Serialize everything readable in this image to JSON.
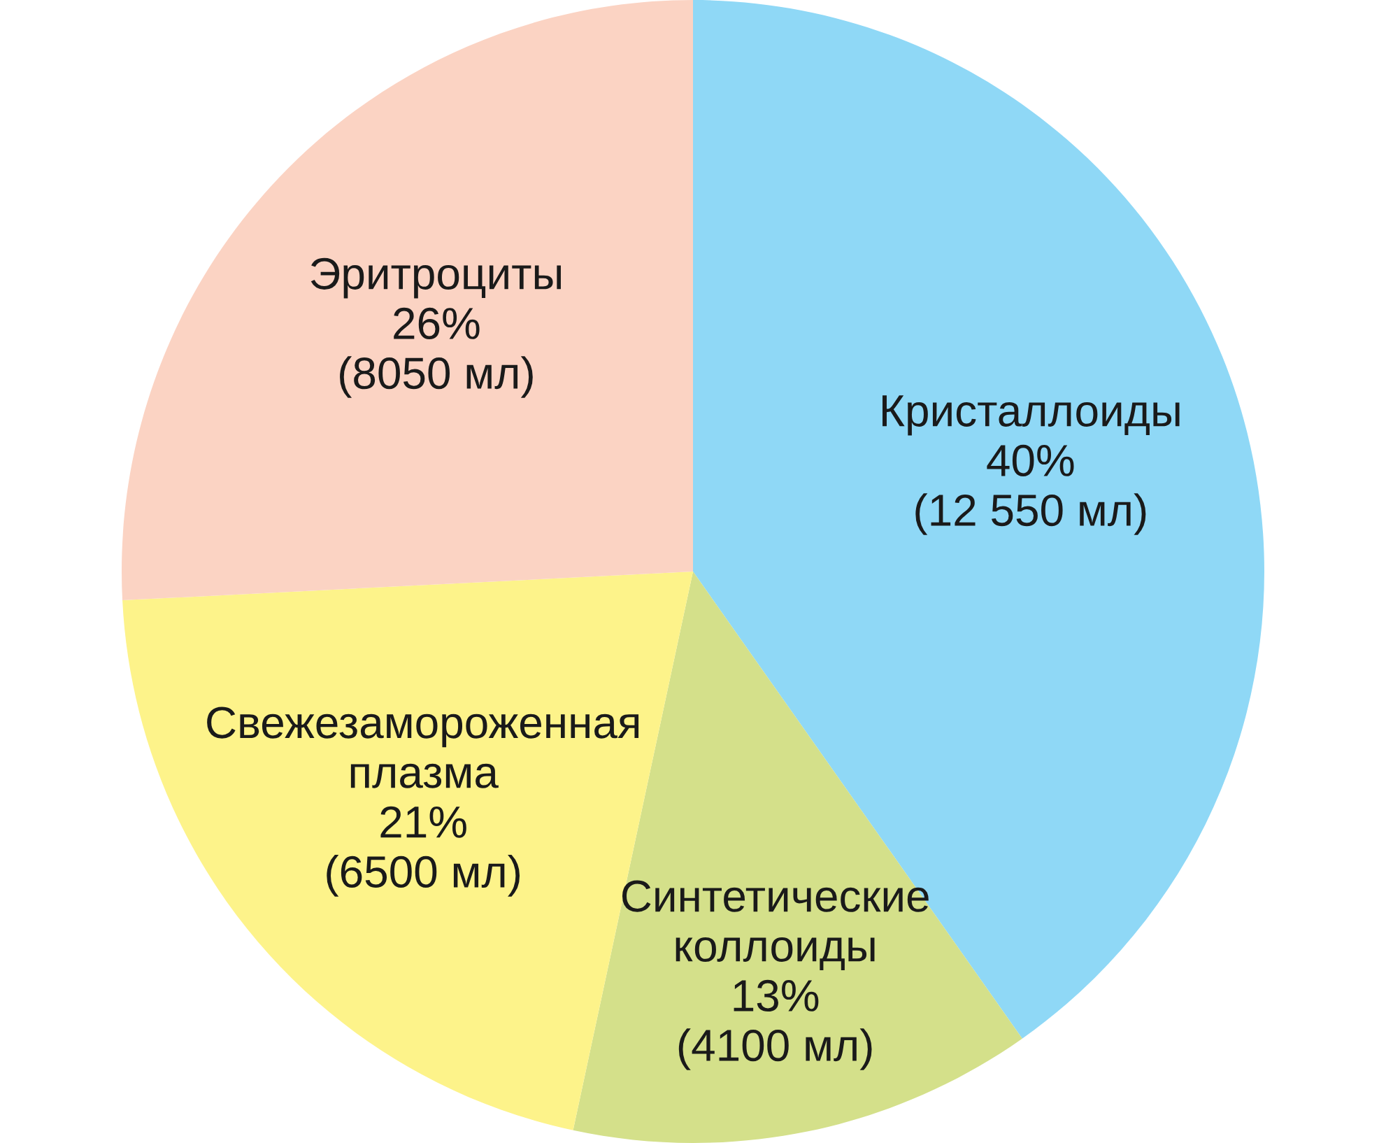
{
  "chart_data": {
    "type": "pie",
    "categories": [
      "Кристаллоиды",
      "Синтетические\nколлоиды",
      "Свежезамороженная\nплазма",
      "Эритроциты"
    ],
    "values": [
      12550,
      4100,
      6500,
      8050
    ],
    "value_labels": [
      "40%\n(12 550 мл)",
      "13%\n(4100 мл)",
      "21%\n(6500 мл)",
      "26%\n(8050 мл)"
    ],
    "colors": [
      "#8fd8f6",
      "#d4e08a",
      "#fdf38a",
      "#fbd3c3"
    ],
    "legend": false
  }
}
